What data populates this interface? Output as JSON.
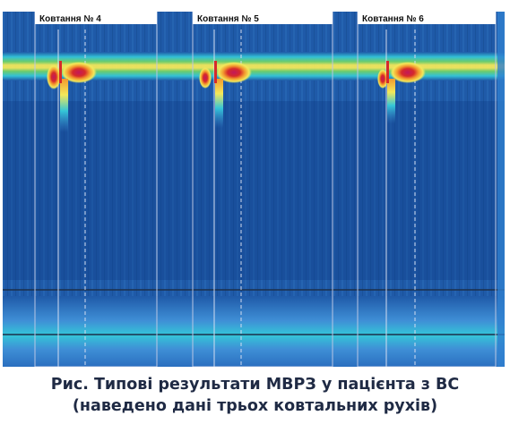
{
  "figure": {
    "swallows": [
      {
        "label": "Ковтання № 4"
      },
      {
        "label": "Ковтання № 5"
      },
      {
        "label": "Ковтання № 6"
      }
    ],
    "colors": {
      "background": "#1f5aa8",
      "deep": "#0d3d86",
      "light_band": "#3f8fd6",
      "cyan": "#34c6d8",
      "green": "#6fd26a",
      "yellow": "#f3e85a",
      "orange": "#f39a2e",
      "red": "#d62a2a",
      "magenta": "#c2185b"
    }
  },
  "caption": {
    "line1": "Рис. Типові результати МВРЗ у пацієнта з ВС",
    "line2": "(наведено дані трьох ковтальних рухів)"
  }
}
